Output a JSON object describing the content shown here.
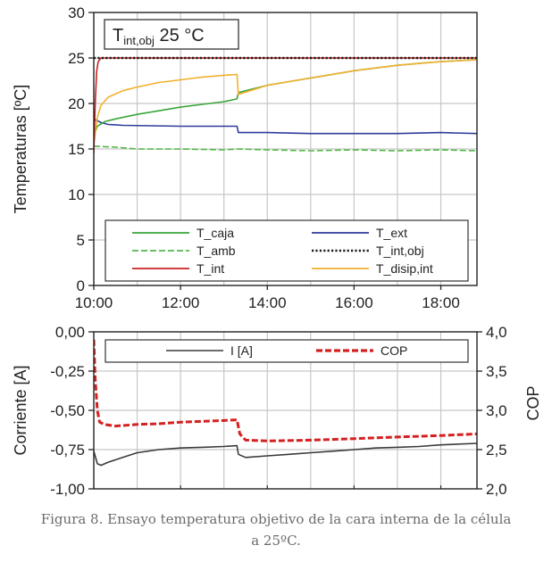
{
  "chart_data": [
    {
      "type": "line",
      "ylabel": "Temperaturas [ºC]",
      "xlabel": "",
      "xlim": [
        "10:00",
        "18:50"
      ],
      "ylim": [
        0,
        30
      ],
      "xticks": [
        "10:00",
        "12:00",
        "14:00",
        "16:00",
        "18:00"
      ],
      "yticks": [
        "0",
        "5",
        "10",
        "15",
        "20",
        "25",
        "30"
      ],
      "grid": true,
      "annotation": {
        "main": "T",
        "sub": "int,obj",
        "rest": " 25 °C"
      },
      "legend": {
        "placement": "bottom",
        "columns": 2
      },
      "series": [
        {
          "name": "T_caja",
          "color": "#3aa63a",
          "dash": "solid",
          "points": [
            [
              "10:00",
              16.5
            ],
            [
              "10:05",
              17.5
            ],
            [
              "10:15",
              18.0
            ],
            [
              "10:30",
              18.3
            ],
            [
              "11:00",
              18.8
            ],
            [
              "11:30",
              19.2
            ],
            [
              "12:00",
              19.6
            ],
            [
              "12:30",
              19.9
            ],
            [
              "13:00",
              20.2
            ],
            [
              "13:18",
              20.5
            ],
            [
              "13:20",
              21.2
            ],
            [
              "13:40",
              21.6
            ],
            [
              "14:00",
              22.0
            ],
            [
              "14:30",
              22.4
            ],
            [
              "15:00",
              22.8
            ],
            [
              "15:30",
              23.2
            ],
            [
              "16:00",
              23.6
            ],
            [
              "16:30",
              23.9
            ],
            [
              "17:00",
              24.2
            ],
            [
              "17:30",
              24.4
            ],
            [
              "18:00",
              24.6
            ],
            [
              "18:50",
              24.8
            ]
          ]
        },
        {
          "name": "T_ext",
          "color": "#2f3c9a",
          "dash": "solid",
          "points": [
            [
              "10:00",
              18.3
            ],
            [
              "10:10",
              17.9
            ],
            [
              "10:20",
              17.7
            ],
            [
              "10:40",
              17.6
            ],
            [
              "12:00",
              17.5
            ],
            [
              "13:18",
              17.5
            ],
            [
              "13:20",
              16.8
            ],
            [
              "14:00",
              16.8
            ],
            [
              "15:00",
              16.7
            ],
            [
              "16:00",
              16.7
            ],
            [
              "17:00",
              16.7
            ],
            [
              "18:00",
              16.8
            ],
            [
              "18:50",
              16.7
            ]
          ]
        },
        {
          "name": "T_amb",
          "color": "#54b84a",
          "dash": "dashed",
          "points": [
            [
              "10:00",
              15.3
            ],
            [
              "10:30",
              15.2
            ],
            [
              "11:00",
              15.0
            ],
            [
              "12:00",
              15.0
            ],
            [
              "13:00",
              14.9
            ],
            [
              "13:20",
              15.0
            ],
            [
              "14:00",
              14.9
            ],
            [
              "15:00",
              14.8
            ],
            [
              "16:00",
              14.9
            ],
            [
              "17:00",
              14.8
            ],
            [
              "18:00",
              14.9
            ],
            [
              "18:50",
              14.8
            ]
          ]
        },
        {
          "name": "T_int,obj",
          "color": "#1a1a1a",
          "dash": "dotted",
          "points": [
            [
              "10:00",
              25.0
            ],
            [
              "18:50",
              25.0
            ]
          ]
        },
        {
          "name": "T_int",
          "color": "#cc2222",
          "dash": "solid",
          "points": [
            [
              "10:00",
              14.5
            ],
            [
              "10:02",
              20.0
            ],
            [
              "10:04",
              23.5
            ],
            [
              "10:06",
              24.6
            ],
            [
              "10:10",
              25.0
            ],
            [
              "18:50",
              25.0
            ]
          ]
        },
        {
          "name": "T_disip,int",
          "color": "#f2b02e",
          "dash": "solid",
          "points": [
            [
              "10:00",
              15.5
            ],
            [
              "10:05",
              18.5
            ],
            [
              "10:10",
              19.8
            ],
            [
              "10:20",
              20.7
            ],
            [
              "10:40",
              21.4
            ],
            [
              "11:00",
              21.8
            ],
            [
              "11:30",
              22.3
            ],
            [
              "12:00",
              22.6
            ],
            [
              "12:30",
              22.9
            ],
            [
              "13:00",
              23.1
            ],
            [
              "13:18",
              23.2
            ],
            [
              "13:20",
              21.0
            ],
            [
              "13:40",
              21.5
            ],
            [
              "14:00",
              22.0
            ],
            [
              "14:30",
              22.4
            ],
            [
              "15:00",
              22.8
            ],
            [
              "15:30",
              23.2
            ],
            [
              "16:00",
              23.6
            ],
            [
              "16:30",
              23.9
            ],
            [
              "17:00",
              24.2
            ],
            [
              "17:30",
              24.4
            ],
            [
              "18:00",
              24.6
            ],
            [
              "18:50",
              24.8
            ]
          ]
        }
      ]
    },
    {
      "type": "line",
      "ylabel": "Corriente [A]",
      "y2label": "COP",
      "xlim": [
        "10:00",
        "18:50"
      ],
      "ylim": [
        -1.0,
        0.0
      ],
      "y2lim": [
        2.0,
        4.0
      ],
      "yticks": [
        "0,00",
        "-0,25",
        "-0,50",
        "-0,75",
        "-1,00"
      ],
      "y2ticks": [
        "4,0",
        "3,5",
        "3,0",
        "2,5",
        "2,0"
      ],
      "grid": true,
      "legend": {
        "placement": "top",
        "columns": 2
      },
      "series": [
        {
          "name": "I [A]",
          "color": "#3a3a3a",
          "dash": "solid",
          "axis": "left",
          "points": [
            [
              "10:00",
              -0.76
            ],
            [
              "10:05",
              -0.84
            ],
            [
              "10:10",
              -0.85
            ],
            [
              "10:20",
              -0.83
            ],
            [
              "10:40",
              -0.8
            ],
            [
              "11:00",
              -0.77
            ],
            [
              "11:30",
              -0.75
            ],
            [
              "12:00",
              -0.74
            ],
            [
              "12:30",
              -0.735
            ],
            [
              "13:00",
              -0.73
            ],
            [
              "13:18",
              -0.725
            ],
            [
              "13:20",
              -0.78
            ],
            [
              "13:30",
              -0.8
            ],
            [
              "14:00",
              -0.79
            ],
            [
              "14:30",
              -0.78
            ],
            [
              "15:00",
              -0.77
            ],
            [
              "15:30",
              -0.76
            ],
            [
              "16:00",
              -0.75
            ],
            [
              "16:30",
              -0.74
            ],
            [
              "17:00",
              -0.735
            ],
            [
              "17:30",
              -0.73
            ],
            [
              "18:00",
              -0.72
            ],
            [
              "18:50",
              -0.71
            ]
          ]
        },
        {
          "name": "COP",
          "color": "#d42020",
          "dash": "dashed",
          "axis": "right",
          "points": [
            [
              "10:00",
              3.9
            ],
            [
              "10:02",
              3.4
            ],
            [
              "10:05",
              3.0
            ],
            [
              "10:08",
              2.85
            ],
            [
              "10:15",
              2.82
            ],
            [
              "10:30",
              2.8
            ],
            [
              "11:00",
              2.82
            ],
            [
              "11:30",
              2.83
            ],
            [
              "12:00",
              2.85
            ],
            [
              "12:30",
              2.86
            ],
            [
              "13:00",
              2.87
            ],
            [
              "13:18",
              2.88
            ],
            [
              "13:22",
              2.7
            ],
            [
              "13:30",
              2.62
            ],
            [
              "14:00",
              2.61
            ],
            [
              "15:00",
              2.62
            ],
            [
              "15:30",
              2.63
            ],
            [
              "16:00",
              2.64
            ],
            [
              "17:00",
              2.66
            ],
            [
              "18:00",
              2.68
            ],
            [
              "18:50",
              2.7
            ]
          ]
        }
      ]
    }
  ],
  "caption": {
    "line1": "Figura 8. Ensayo temperatura objetivo de la cara interna de la célula",
    "line2": "a 25ºC."
  }
}
